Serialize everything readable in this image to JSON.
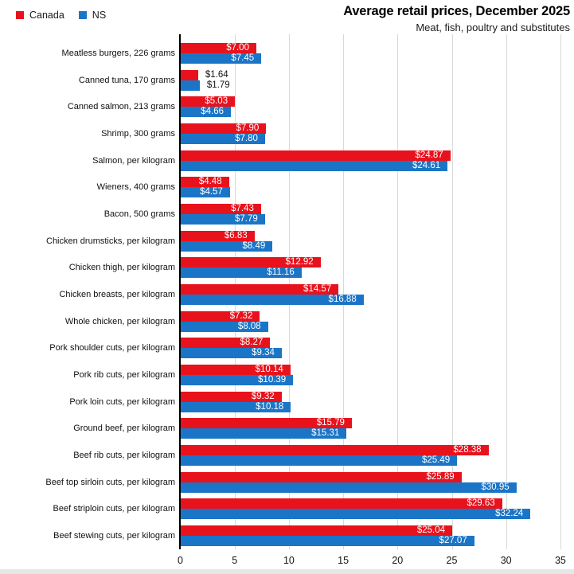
{
  "title": "Average retail prices, December 2025",
  "subtitle": "Meat, fish, poultry and substitutes",
  "legend": [
    {
      "label": "Canada",
      "color": "#e8121d"
    },
    {
      "label": "NS",
      "color": "#1b75c7"
    }
  ],
  "colors": {
    "canada": "#e8121d",
    "ns": "#1b75c7",
    "gridline": "#d9d9d9",
    "axis": "#000000",
    "inside_label": "#ffffff",
    "outside_label": "#111111"
  },
  "chart_data": {
    "type": "bar",
    "orientation": "horizontal",
    "title": "Average retail prices, December 2025",
    "subtitle": "Meat, fish, poultry and substitutes",
    "legend_position": "top-left",
    "grid": true,
    "xlim": [
      0,
      35
    ],
    "xticks": [
      0,
      5,
      10,
      15,
      20,
      25,
      30,
      35
    ],
    "value_prefix": "$",
    "categories": [
      "Meatless burgers, 226 grams",
      "Canned tuna, 170 grams",
      "Canned salmon, 213 grams",
      "Shrimp, 300 grams",
      "Salmon, per kilogram",
      "Wieners, 400 grams",
      "Bacon, 500 grams",
      "Chicken drumsticks, per kilogram",
      "Chicken thigh, per kilogram",
      "Chicken breasts, per kilogram",
      "Whole chicken, per kilogram",
      "Pork shoulder cuts, per kilogram",
      "Pork rib cuts, per kilogram",
      "Pork loin cuts, per kilogram",
      "Ground beef, per kilogram",
      "Beef rib cuts, per kilogram",
      "Beef top sirloin cuts, per kilogram",
      "Beef striploin cuts, per kilogram",
      "Beef stewing cuts, per kilogram"
    ],
    "series": [
      {
        "name": "Canada",
        "color": "#e8121d",
        "values": [
          7.0,
          1.64,
          5.03,
          7.9,
          24.87,
          4.48,
          7.43,
          6.83,
          12.92,
          14.57,
          7.32,
          8.27,
          10.14,
          9.32,
          15.79,
          28.38,
          25.89,
          29.63,
          25.04
        ]
      },
      {
        "name": "NS",
        "color": "#1b75c7",
        "values": [
          7.45,
          1.79,
          4.66,
          7.8,
          24.61,
          4.57,
          7.79,
          8.49,
          11.16,
          16.88,
          8.08,
          9.34,
          10.39,
          10.18,
          15.31,
          25.49,
          30.95,
          32.24,
          27.07
        ]
      }
    ]
  }
}
